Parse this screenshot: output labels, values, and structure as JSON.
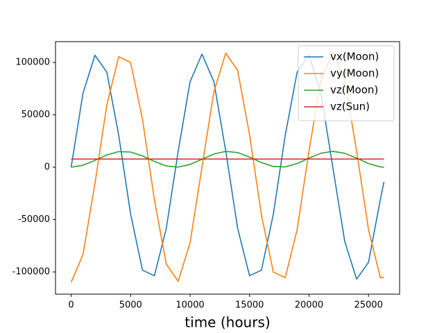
{
  "chart_data": {
    "type": "line",
    "x": [
      0,
      1000,
      2000,
      3000,
      4000,
      5000,
      6000,
      7000,
      8000,
      9000,
      10000,
      11000,
      12000,
      13000,
      14000,
      15000,
      16000,
      17000,
      18000,
      19000,
      20000,
      21000,
      22000,
      23000,
      24000,
      25000,
      26000,
      26300
    ],
    "series": [
      {
        "name": "vx(Moon)",
        "color": "#1f77b4",
        "values": [
          0,
          70700,
          106900,
          90800,
          30500,
          -44800,
          -98300,
          -103600,
          -58400,
          15300,
          81600,
          108000,
          81600,
          15300,
          -58400,
          -103600,
          -98300,
          -44800,
          30500,
          90800,
          106900,
          70700,
          0,
          -70700,
          -106900,
          -90800,
          -30500,
          -14000
        ]
      },
      {
        "name": "vy(Moon)",
        "color": "#ff7f0e",
        "values": [
          -110000,
          -83200,
          -15600,
          59500,
          105500,
          100100,
          45700,
          -31000,
          -92500,
          -108900,
          -72100,
          0,
          72100,
          108900,
          92500,
          31000,
          -45700,
          -100100,
          -105500,
          -59500,
          15600,
          83200,
          110000,
          83200,
          15600,
          -59500,
          -105500,
          -105000
        ]
      },
      {
        "name": "vz(Moon)",
        "color": "#2ca02c",
        "values": [
          0,
          1900,
          6500,
          11700,
          14900,
          14500,
          10800,
          5500,
          1200,
          100,
          2600,
          7600,
          12600,
          15100,
          14000,
          9700,
          4400,
          700,
          300,
          3500,
          8700,
          13300,
          15200,
          13300,
          8700,
          3500,
          300,
          0
        ]
      },
      {
        "name": "vz(Sun)",
        "color": "#d62728",
        "values": [
          7800,
          7800,
          7800,
          7800,
          7800,
          7800,
          7800,
          7800,
          7800,
          7800,
          7800,
          7800,
          7800,
          7800,
          7800,
          7800,
          7800,
          7800,
          7800,
          7800,
          7800,
          7800,
          7800,
          7800,
          7800,
          7800,
          7800,
          7800
        ]
      }
    ],
    "x_label": "time (hours)",
    "xlim": [
      -1315,
      27615
    ],
    "xticks": [
      0,
      5000,
      10000,
      15000,
      20000,
      25000
    ],
    "ylim": [
      -121200,
      119900
    ],
    "yticks": [
      -100000,
      -50000,
      0,
      50000,
      100000
    ],
    "legend": "upper right"
  }
}
